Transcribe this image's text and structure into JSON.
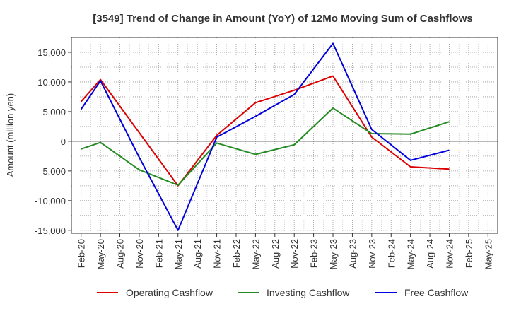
{
  "chart_data": {
    "type": "line",
    "title": "[3549]  Trend of Change in Amount (YoY) of 12Mo Moving Sum of Cashflows",
    "xlabel": "",
    "ylabel": "Amount (million yen)",
    "ylim": [
      -15500,
      17500
    ],
    "yticks": [
      15000,
      10000,
      5000,
      0,
      -5000,
      -10000,
      -15000
    ],
    "ytick_labels": [
      "15,000",
      "10,000",
      "5,000",
      "0",
      "-5,000",
      "-10,000",
      "-15,000"
    ],
    "categories": [
      "Feb-20",
      "May-20",
      "Aug-20",
      "Nov-20",
      "Feb-21",
      "May-21",
      "Aug-21",
      "Nov-21",
      "Feb-22",
      "May-22",
      "Aug-22",
      "Nov-22",
      "Feb-23",
      "May-23",
      "Aug-23",
      "Nov-23",
      "Feb-24",
      "May-24",
      "Aug-24",
      "Nov-24",
      "Feb-25",
      "May-25"
    ],
    "grid": true,
    "legend_position": "bottom",
    "series": [
      {
        "name": "Operating Cashflow",
        "color": "#dd0000",
        "values": [
          6700,
          10400,
          null,
          null,
          null,
          -7500,
          null,
          1000,
          null,
          6500,
          null,
          8600,
          null,
          11000,
          null,
          700,
          null,
          -4300,
          null,
          -4700,
          null,
          null
        ]
      },
      {
        "name": "Investing Cashflow",
        "color": "#228b22",
        "values": [
          -1300,
          -200,
          null,
          -4800,
          null,
          -7400,
          null,
          -300,
          null,
          -2200,
          null,
          -600,
          null,
          5600,
          null,
          1300,
          null,
          1200,
          null,
          3300,
          null,
          null
        ]
      },
      {
        "name": "Free Cashflow",
        "color": "#0000dd",
        "values": [
          5400,
          10200,
          null,
          -2700,
          null,
          -15000,
          null,
          700,
          null,
          4200,
          null,
          7900,
          null,
          16500,
          null,
          2000,
          null,
          -3200,
          null,
          -1500,
          null,
          null
        ]
      }
    ]
  }
}
